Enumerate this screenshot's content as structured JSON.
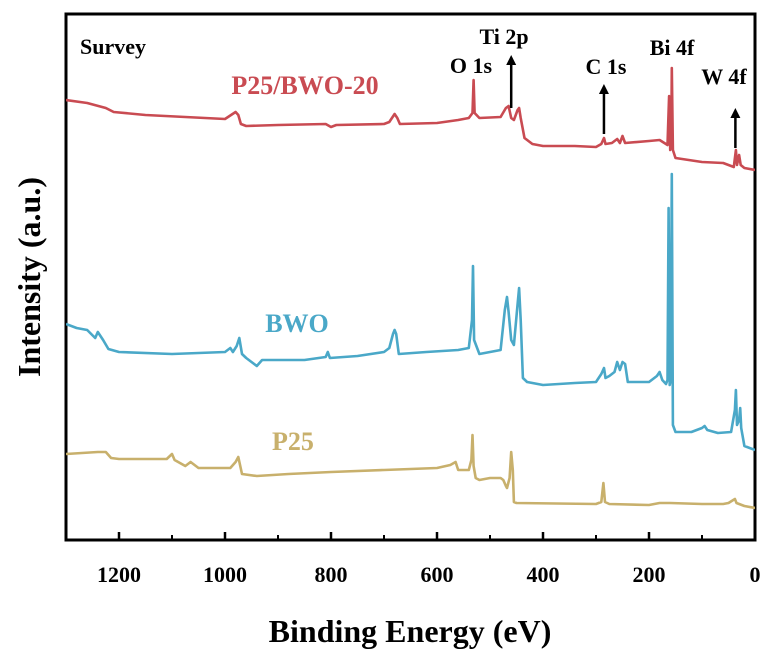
{
  "chart_data": {
    "type": "line",
    "title": "",
    "xlabel": "Binding Energy (eV)",
    "ylabel": "Intensity (a.u.)",
    "xlim": [
      1300,
      0
    ],
    "x_reversed": true,
    "x_ticks": [
      1200,
      1000,
      800,
      600,
      400,
      200,
      0
    ],
    "y_ticks_shown": false,
    "grid": false,
    "panel_label": "Survey",
    "series": [
      {
        "name": "P25/BWO-20",
        "color": "#c94b52",
        "points": [
          [
            1300,
            100
          ],
          [
            1260,
            103
          ],
          [
            1225,
            108
          ],
          [
            1210,
            112
          ],
          [
            1150,
            115
          ],
          [
            1000,
            119
          ],
          [
            980,
            112
          ],
          [
            975,
            115
          ],
          [
            970,
            124
          ],
          [
            960,
            126
          ],
          [
            900,
            125
          ],
          [
            810,
            124
          ],
          [
            800,
            127
          ],
          [
            790,
            125
          ],
          [
            700,
            124
          ],
          [
            690,
            122
          ],
          [
            680,
            114
          ],
          [
            675,
            118
          ],
          [
            670,
            124
          ],
          [
            600,
            123
          ],
          [
            560,
            120
          ],
          [
            540,
            118
          ],
          [
            533,
            113
          ],
          [
            531,
            80
          ],
          [
            529,
            113
          ],
          [
            520,
            118
          ],
          [
            480,
            117
          ],
          [
            470,
            108
          ],
          [
            465,
            106
          ],
          [
            460,
            118
          ],
          [
            455,
            120
          ],
          [
            448,
            110
          ],
          [
            445,
            108
          ],
          [
            442,
            118
          ],
          [
            435,
            138
          ],
          [
            420,
            144
          ],
          [
            400,
            146
          ],
          [
            340,
            146
          ],
          [
            300,
            147
          ],
          [
            290,
            144
          ],
          [
            285,
            138
          ],
          [
            282,
            144
          ],
          [
            270,
            143
          ],
          [
            260,
            139
          ],
          [
            255,
            143
          ],
          [
            250,
            136
          ],
          [
            245,
            143
          ],
          [
            200,
            141
          ],
          [
            180,
            140
          ],
          [
            165,
            145
          ],
          [
            162,
            96
          ],
          [
            160,
            150
          ],
          [
            158,
            140
          ],
          [
            157,
            68
          ],
          [
            155,
            150
          ],
          [
            150,
            158
          ],
          [
            100,
            162
          ],
          [
            60,
            163
          ],
          [
            40,
            167
          ],
          [
            36,
            150
          ],
          [
            34,
            165
          ],
          [
            30,
            155
          ],
          [
            27,
            165
          ],
          [
            20,
            168
          ],
          [
            0,
            170
          ]
        ]
      },
      {
        "name": "BWO",
        "color": "#4aa8c8",
        "points": [
          [
            1300,
            324
          ],
          [
            1280,
            328
          ],
          [
            1260,
            330
          ],
          [
            1245,
            338
          ],
          [
            1240,
            332
          ],
          [
            1230,
            340
          ],
          [
            1220,
            349
          ],
          [
            1200,
            352
          ],
          [
            1100,
            354
          ],
          [
            1000,
            352
          ],
          [
            990,
            348
          ],
          [
            985,
            352
          ],
          [
            978,
            346
          ],
          [
            973,
            338
          ],
          [
            968,
            354
          ],
          [
            960,
            358
          ],
          [
            950,
            362
          ],
          [
            940,
            366
          ],
          [
            930,
            360
          ],
          [
            900,
            360
          ],
          [
            850,
            360
          ],
          [
            810,
            357
          ],
          [
            806,
            352
          ],
          [
            802,
            358
          ],
          [
            750,
            356
          ],
          [
            700,
            352
          ],
          [
            690,
            348
          ],
          [
            683,
            334
          ],
          [
            680,
            330
          ],
          [
            677,
            334
          ],
          [
            672,
            354
          ],
          [
            620,
            352
          ],
          [
            560,
            350
          ],
          [
            540,
            348
          ],
          [
            534,
            320
          ],
          [
            532,
            266
          ],
          [
            530,
            340
          ],
          [
            520,
            354
          ],
          [
            480,
            350
          ],
          [
            472,
            310
          ],
          [
            468,
            297
          ],
          [
            465,
            312
          ],
          [
            460,
            340
          ],
          [
            455,
            345
          ],
          [
            448,
            304
          ],
          [
            445,
            288
          ],
          [
            442,
            320
          ],
          [
            438,
            378
          ],
          [
            430,
            382
          ],
          [
            400,
            385
          ],
          [
            340,
            383
          ],
          [
            300,
            382
          ],
          [
            290,
            374
          ],
          [
            285,
            368
          ],
          [
            282,
            378
          ],
          [
            275,
            376
          ],
          [
            265,
            372
          ],
          [
            260,
            362
          ],
          [
            255,
            370
          ],
          [
            250,
            362
          ],
          [
            245,
            364
          ],
          [
            240,
            382
          ],
          [
            200,
            382
          ],
          [
            185,
            376
          ],
          [
            180,
            372
          ],
          [
            175,
            380
          ],
          [
            168,
            384
          ],
          [
            165,
            380
          ],
          [
            163,
            208
          ],
          [
            161,
            385
          ],
          [
            159,
            380
          ],
          [
            157,
            174
          ],
          [
            155,
            425
          ],
          [
            150,
            432
          ],
          [
            120,
            432
          ],
          [
            100,
            428
          ],
          [
            95,
            426
          ],
          [
            90,
            430
          ],
          [
            70,
            433
          ],
          [
            45,
            432
          ],
          [
            38,
            410
          ],
          [
            36,
            390
          ],
          [
            34,
            425
          ],
          [
            30,
            420
          ],
          [
            28,
            408
          ],
          [
            26,
            428
          ],
          [
            20,
            446
          ],
          [
            0,
            450
          ]
        ]
      },
      {
        "name": "P25",
        "color": "#c8b06c",
        "points": [
          [
            1300,
            454
          ],
          [
            1240,
            452
          ],
          [
            1225,
            452
          ],
          [
            1215,
            458
          ],
          [
            1200,
            459
          ],
          [
            1110,
            459
          ],
          [
            1100,
            454
          ],
          [
            1095,
            460
          ],
          [
            1075,
            466
          ],
          [
            1065,
            462
          ],
          [
            1050,
            468
          ],
          [
            990,
            468
          ],
          [
            980,
            462
          ],
          [
            975,
            457
          ],
          [
            968,
            474
          ],
          [
            940,
            476
          ],
          [
            880,
            474
          ],
          [
            800,
            472
          ],
          [
            700,
            470
          ],
          [
            600,
            468
          ],
          [
            575,
            465
          ],
          [
            565,
            462
          ],
          [
            560,
            470
          ],
          [
            540,
            470
          ],
          [
            535,
            460
          ],
          [
            533,
            435
          ],
          [
            531,
            466
          ],
          [
            527,
            478
          ],
          [
            520,
            480
          ],
          [
            500,
            478
          ],
          [
            480,
            478
          ],
          [
            475,
            480
          ],
          [
            470,
            486
          ],
          [
            468,
            488
          ],
          [
            463,
            478
          ],
          [
            460,
            452
          ],
          [
            457,
            470
          ],
          [
            455,
            502
          ],
          [
            450,
            503
          ],
          [
            300,
            504
          ],
          [
            290,
            502
          ],
          [
            286,
            483
          ],
          [
            283,
            502
          ],
          [
            275,
            504
          ],
          [
            200,
            505
          ],
          [
            180,
            503
          ],
          [
            160,
            503
          ],
          [
            100,
            504
          ],
          [
            60,
            504
          ],
          [
            50,
            503
          ],
          [
            38,
            499
          ],
          [
            35,
            503
          ],
          [
            20,
            506
          ],
          [
            0,
            508
          ]
        ]
      }
    ],
    "annotations": [
      {
        "text": "O 1s",
        "x": 531,
        "arrow": false
      },
      {
        "text": "Ti 2p",
        "x": 460,
        "arrow": true
      },
      {
        "text": "C 1s",
        "x": 285,
        "arrow": true
      },
      {
        "text": "Bi 4f",
        "x": 158,
        "arrow": false
      },
      {
        "text": "W 4f",
        "x": 37,
        "arrow": true
      }
    ]
  }
}
